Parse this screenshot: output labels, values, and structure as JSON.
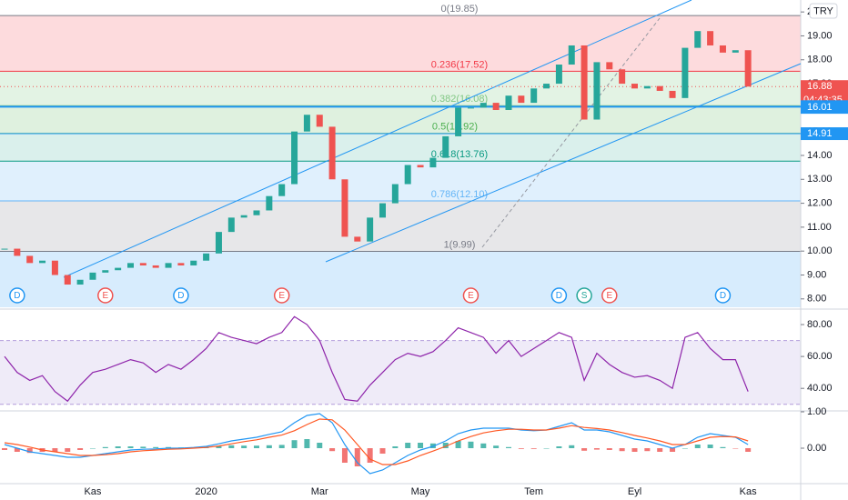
{
  "chart_data": [
    {
      "type": "candlestick",
      "currency": "TRY",
      "categories": [
        null,
        null,
        null,
        null,
        null,
        null,
        null,
        "Kas",
        null,
        null,
        null,
        null,
        null,
        null,
        null,
        null,
        "2020",
        null,
        null,
        null,
        null,
        null,
        null,
        null,
        null,
        "Mar",
        null,
        null,
        null,
        null,
        null,
        null,
        null,
        "May",
        null,
        null,
        null,
        null,
        null,
        null,
        null,
        null,
        "Tem",
        null,
        null,
        null,
        null,
        null,
        null,
        null,
        "Eyl",
        null,
        null,
        null,
        null,
        null,
        null,
        null,
        null,
        "Kas"
      ],
      "values": [
        10.1,
        9.8,
        9.5,
        9.6,
        9.0,
        8.6,
        8.8,
        9.1,
        9.2,
        9.3,
        9.5,
        9.4,
        9.3,
        9.5,
        9.4,
        9.6,
        9.9,
        10.8,
        11.4,
        11.5,
        11.7,
        12.3,
        12.8,
        15.0,
        15.7,
        15.2,
        13.0,
        10.6,
        10.4,
        11.4,
        12.0,
        12.8,
        13.6,
        13.5,
        13.9,
        14.8,
        16.0,
        16.0,
        16.2,
        15.9,
        16.5,
        16.2,
        16.8,
        17.0,
        17.8,
        18.6,
        15.5,
        17.9,
        17.6,
        17.0,
        16.8,
        16.9,
        16.7,
        16.4,
        18.5,
        19.2,
        18.6,
        18.3,
        18.4,
        16.88
      ],
      "up_color": "#26a69a",
      "down_color": "#ef5350",
      "ylim": [
        7.65,
        20.5
      ],
      "yticks": [
        {
          "value": 8,
          "label": "8.00"
        },
        {
          "value": 9,
          "label": "9.00"
        },
        {
          "value": 10,
          "label": "10.00"
        },
        {
          "value": 11,
          "label": "11.00"
        },
        {
          "value": 12,
          "label": "12.00"
        },
        {
          "value": 13,
          "label": "13.00"
        },
        {
          "value": 14,
          "label": "14.00"
        },
        {
          "value": 15,
          "label": "15.00"
        },
        {
          "value": 16,
          "label": "16.00"
        },
        {
          "value": 17,
          "label": "17.00"
        },
        {
          "value": 18,
          "label": "18.00"
        },
        {
          "value": 19,
          "label": "19.00"
        },
        {
          "value": 20,
          "label": "20.00"
        }
      ],
      "fib_levels": [
        {
          "label": "0(19.85)",
          "price": 19.85,
          "color": "#787b86",
          "band": "rgba(242,54,69,0.18)"
        },
        {
          "label": "0.236(17.52)",
          "price": 17.52,
          "color": "#f23645",
          "band": "rgba(129,199,132,0.22)"
        },
        {
          "label": "0.382(16.08)",
          "price": 16.08,
          "color": "#81c784",
          "band": "rgba(76,175,80,0.18)"
        },
        {
          "label": "0.5(14.92)",
          "price": 14.92,
          "color": "#4caf50",
          "band": "rgba(8,153,129,0.15)"
        },
        {
          "label": "0.618(13.76)",
          "price": 13.76,
          "color": "#089981",
          "band": "rgba(100,181,246,0.2)"
        },
        {
          "label": "0.786(12.10)",
          "price": 12.1,
          "color": "#64b5f6",
          "band": "rgba(120,123,134,0.18)"
        },
        {
          "label": "1(9.99)",
          "price": 9.99,
          "color": "#787b86",
          "band": "rgba(33,150,243,0.18)"
        }
      ],
      "price_tags": [
        {
          "label": "16.88",
          "price": 16.88,
          "color": "#ef5350",
          "line": "dotted"
        },
        {
          "label": "16.04",
          "price": 16.04,
          "color": "#2196f3",
          "line": "solid"
        },
        {
          "label": "16.01",
          "price": 16.01,
          "color": "#2196f3",
          "line": "none"
        },
        {
          "label": "14.91",
          "price": 14.91,
          "color": "#2196f3",
          "line": "thin"
        }
      ],
      "countdown": "04:43:35",
      "events": [
        {
          "label": "D",
          "index": 1
        },
        {
          "label": "E",
          "index": 8
        },
        {
          "label": "D",
          "index": 14
        },
        {
          "label": "E",
          "index": 22
        },
        {
          "label": "E",
          "index": 37
        },
        {
          "label": "D",
          "index": 44
        },
        {
          "label": "S",
          "index": 46
        },
        {
          "label": "E",
          "index": 48
        },
        {
          "label": "D",
          "index": 57
        }
      ]
    },
    {
      "type": "line",
      "name": "RSI",
      "values": [
        60,
        50,
        45,
        48,
        38,
        32,
        42,
        50,
        52,
        55,
        58,
        56,
        50,
        55,
        52,
        58,
        65,
        75,
        72,
        70,
        68,
        72,
        75,
        85,
        80,
        70,
        50,
        33,
        32,
        42,
        50,
        58,
        62,
        60,
        63,
        70,
        78,
        75,
        72,
        62,
        70,
        60,
        65,
        70,
        75,
        72,
        45,
        62,
        55,
        50,
        47,
        48,
        45,
        40,
        72,
        75,
        65,
        58,
        58,
        38
      ],
      "color": "#8e24aa",
      "ylim": [
        27,
        88
      ],
      "band": [
        30,
        70
      ],
      "yticks": [
        {
          "value": 40,
          "label": "40.00"
        },
        {
          "value": 60,
          "label": "60.00"
        },
        {
          "value": 80,
          "label": "80.00"
        }
      ]
    },
    {
      "type": "macd",
      "macd": [
        0.1,
        0.0,
        -0.1,
        -0.15,
        -0.2,
        -0.25,
        -0.25,
        -0.2,
        -0.15,
        -0.1,
        -0.05,
        -0.03,
        -0.02,
        0.0,
        0.0,
        0.02,
        0.05,
        0.12,
        0.2,
        0.25,
        0.3,
        0.38,
        0.45,
        0.7,
        0.9,
        0.95,
        0.7,
        0.1,
        -0.4,
        -0.7,
        -0.6,
        -0.4,
        -0.2,
        -0.05,
        0.05,
        0.2,
        0.4,
        0.5,
        0.55,
        0.55,
        0.55,
        0.5,
        0.48,
        0.5,
        0.6,
        0.7,
        0.5,
        0.5,
        0.45,
        0.35,
        0.25,
        0.2,
        0.1,
        0.0,
        0.1,
        0.3,
        0.4,
        0.35,
        0.3,
        0.1
      ],
      "signal": [
        0.15,
        0.1,
        0.03,
        -0.05,
        -0.1,
        -0.15,
        -0.2,
        -0.2,
        -0.18,
        -0.15,
        -0.1,
        -0.07,
        -0.05,
        -0.03,
        -0.02,
        0.0,
        0.02,
        0.06,
        0.12,
        0.18,
        0.23,
        0.3,
        0.36,
        0.48,
        0.65,
        0.8,
        0.78,
        0.5,
        0.1,
        -0.3,
        -0.45,
        -0.45,
        -0.35,
        -0.2,
        -0.08,
        0.05,
        0.2,
        0.32,
        0.42,
        0.48,
        0.52,
        0.52,
        0.5,
        0.5,
        0.55,
        0.62,
        0.57,
        0.54,
        0.5,
        0.43,
        0.35,
        0.28,
        0.2,
        0.1,
        0.1,
        0.2,
        0.3,
        0.32,
        0.31,
        0.2
      ],
      "hist": [
        -0.05,
        -0.1,
        -0.13,
        -0.1,
        -0.1,
        -0.1,
        -0.05,
        0,
        0.03,
        0.05,
        0.05,
        0.04,
        0.03,
        0.03,
        0.02,
        0.02,
        0.03,
        0.06,
        0.08,
        0.07,
        0.07,
        0.08,
        0.09,
        0.22,
        0.25,
        0.15,
        -0.08,
        -0.4,
        -0.5,
        -0.4,
        -0.15,
        0.05,
        0.15,
        0.15,
        0.13,
        0.15,
        0.2,
        0.18,
        0.13,
        0.07,
        0.03,
        -0.02,
        -0.02,
        0,
        0.05,
        0.08,
        -0.07,
        -0.04,
        -0.05,
        -0.08,
        -0.1,
        -0.08,
        -0.1,
        -0.1,
        0,
        0.1,
        0.1,
        0.03,
        -0.01,
        -0.1
      ],
      "macd_color": "#2196f3",
      "signal_color": "#ff5722",
      "hist_up": "#26a69a",
      "hist_down": "#ef5350",
      "ylim": [
        -0.925,
        0.95
      ],
      "yticks": [
        {
          "value": 0,
          "label": "0.00"
        },
        {
          "value": 1,
          "label": "1.00"
        }
      ]
    }
  ]
}
